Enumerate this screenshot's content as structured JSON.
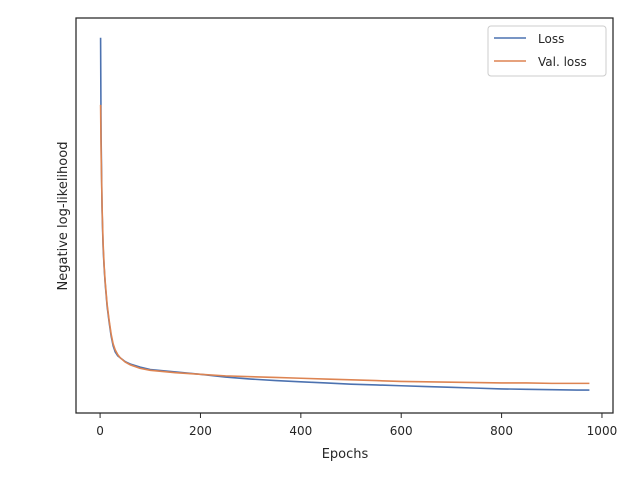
{
  "chart_data": {
    "type": "line",
    "title": "",
    "xlabel": "Epochs",
    "ylabel": "Negative log-likelihood",
    "xlim": [
      -48,
      1022
    ],
    "ylim": [
      0,
      100
    ],
    "x_ticks": [
      0,
      200,
      400,
      600,
      800,
      1000
    ],
    "x_tick_labels": [
      "0",
      "200",
      "400",
      "600",
      "800",
      "1000"
    ],
    "y_ticks_shown": false,
    "grid": false,
    "legend": "top-right",
    "series": [
      {
        "name": "Loss",
        "color": "#4c72b0",
        "x": [
          1,
          2,
          4,
          6,
          8,
          10,
          14,
          18,
          22,
          26,
          30,
          35,
          40,
          50,
          60,
          80,
          100,
          150,
          200,
          250,
          300,
          350,
          400,
          450,
          500,
          550,
          600,
          650,
          700,
          750,
          800,
          850,
          900,
          950,
          975
        ],
        "y": [
          95,
          70,
          51,
          42,
          37,
          33,
          27,
          23,
          19.5,
          17,
          15.5,
          14.5,
          14,
          13,
          12.4,
          11.6,
          11,
          10.4,
          9.8,
          9.1,
          8.6,
          8.2,
          7.9,
          7.6,
          7.3,
          7.1,
          6.9,
          6.7,
          6.5,
          6.3,
          6.1,
          6.0,
          5.9,
          5.8,
          5.8
        ]
      },
      {
        "name": "Val. loss",
        "color": "#dd8452",
        "x": [
          1,
          2,
          4,
          6,
          8,
          10,
          14,
          18,
          22,
          26,
          30,
          35,
          40,
          50,
          60,
          80,
          100,
          150,
          200,
          250,
          300,
          350,
          400,
          450,
          500,
          550,
          600,
          650,
          700,
          750,
          800,
          850,
          900,
          950,
          975
        ],
        "y": [
          78,
          66,
          52,
          43,
          37.5,
          33.5,
          27.5,
          23.5,
          20,
          17.5,
          16,
          14.8,
          14,
          12.9,
          12.2,
          11.3,
          10.8,
          10.2,
          9.8,
          9.4,
          9.2,
          9.0,
          8.8,
          8.6,
          8.4,
          8.2,
          8.0,
          7.9,
          7.8,
          7.7,
          7.6,
          7.6,
          7.5,
          7.5,
          7.5
        ]
      }
    ]
  }
}
